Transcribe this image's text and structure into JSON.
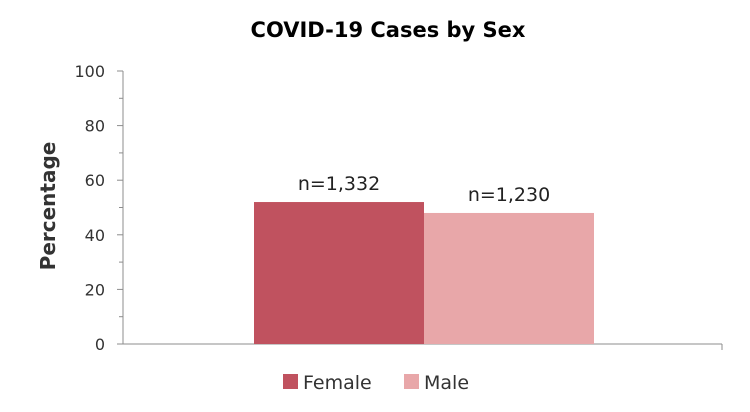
{
  "chart_data": {
    "type": "bar",
    "title": "COVID-19 Cases by Sex",
    "xlabel": "",
    "ylabel": "Percentage",
    "ylim": [
      0,
      100
    ],
    "yticks": [
      0,
      20,
      40,
      60,
      80,
      100
    ],
    "grid": false,
    "legend_position": "bottom",
    "series": [
      {
        "name": "Female",
        "value": 52,
        "data_label": "n=1,332",
        "color": "#c0525f"
      },
      {
        "name": "Male",
        "value": 48,
        "data_label": "n=1,230",
        "color": "#e8a7a9"
      }
    ]
  }
}
